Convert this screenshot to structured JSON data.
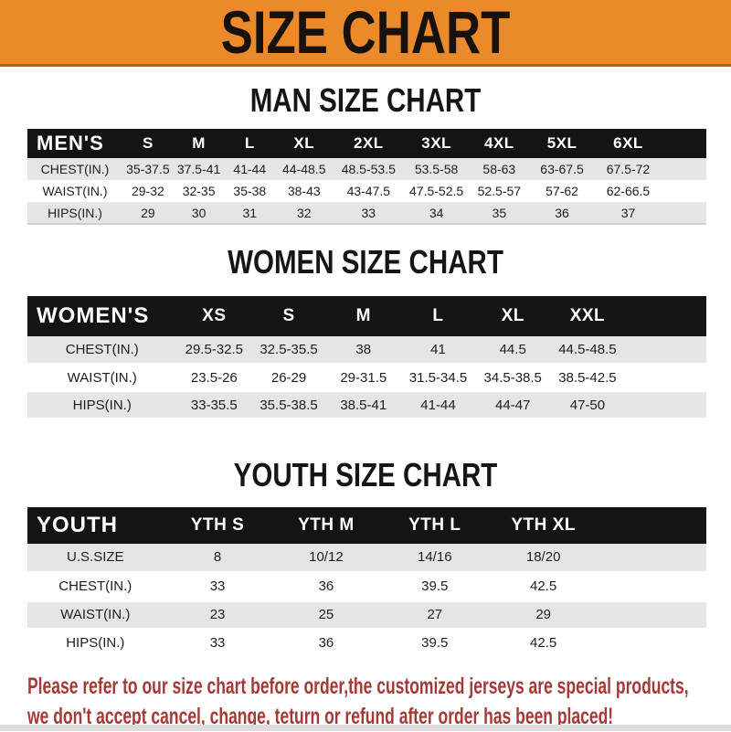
{
  "banner": {
    "title": "SIZE CHART"
  },
  "chart_data": [
    {
      "type": "table",
      "title": "MAN SIZE CHART",
      "corner_label": "MEN'S",
      "columns": [
        "S",
        "M",
        "L",
        "XL",
        "2XL",
        "3XL",
        "4XL",
        "5XL",
        "6XL"
      ],
      "rows": [
        {
          "label": "CHEST(IN.)",
          "values": [
            "35-37.5",
            "37.5-41",
            "41-44",
            "44-48.5",
            "48.5-53.5",
            "53.5-58",
            "58-63",
            "63-67.5",
            "67.5-72"
          ]
        },
        {
          "label": "WAIST(IN.)",
          "values": [
            "29-32",
            "32-35",
            "35-38",
            "38-43",
            "43-47.5",
            "47.5-52.5",
            "52.5-57",
            "57-62",
            "62-66.5"
          ]
        },
        {
          "label": "HIPS(IN.)",
          "values": [
            "29",
            "30",
            "31",
            "32",
            "33",
            "34",
            "35",
            "36",
            "37"
          ]
        }
      ]
    },
    {
      "type": "table",
      "title": "WOMEN SIZE CHART",
      "corner_label": "WOMEN'S",
      "columns": [
        "XS",
        "S",
        "M",
        "L",
        "XL",
        "XXL"
      ],
      "rows": [
        {
          "label": "CHEST(IN.)",
          "values": [
            "29.5-32.5",
            "32.5-35.5",
            "38",
            "41",
            "44.5",
            "44.5-48.5"
          ]
        },
        {
          "label": "WAIST(IN.)",
          "values": [
            "23.5-26",
            "26-29",
            "29-31.5",
            "31.5-34.5",
            "34.5-38.5",
            "38.5-42.5"
          ]
        },
        {
          "label": "HIPS(IN.)",
          "values": [
            "33-35.5",
            "35.5-38.5",
            "38.5-41",
            "41-44",
            "44-47",
            "47-50"
          ]
        }
      ]
    },
    {
      "type": "table",
      "title": "YOUTH SIZE CHART",
      "corner_label": "YOUTH",
      "columns": [
        "YTH S",
        "YTH M",
        "YTH L",
        "YTH XL"
      ],
      "rows": [
        {
          "label": "U.S.SIZE",
          "values": [
            "8",
            "10/12",
            "14/16",
            "18/20"
          ]
        },
        {
          "label": "CHEST(IN.)",
          "values": [
            "33",
            "36",
            "39.5",
            "42.5"
          ]
        },
        {
          "label": "WAIST(IN.)",
          "values": [
            "23",
            "25",
            "27",
            "29"
          ]
        },
        {
          "label": "HIPS(IN.)",
          "values": [
            "33",
            "36",
            "39.5",
            "42.5"
          ]
        }
      ]
    }
  ],
  "disclaimer": {
    "line1": "Please refer to our size chart before order,the customized jerseys are special products,",
    "line2": "we don't accept cancel, change, teturn or refund after order has been placed!"
  },
  "colors": {
    "banner_orange": "#EC8A2B",
    "banner_edge": "#A9641B",
    "header_black": "#141414",
    "row_gray": "#E5E5E5",
    "table_edge": "#CFCFCF",
    "disclaimer_red": "#A43936",
    "bottom_strip": "#DCDCDC"
  }
}
